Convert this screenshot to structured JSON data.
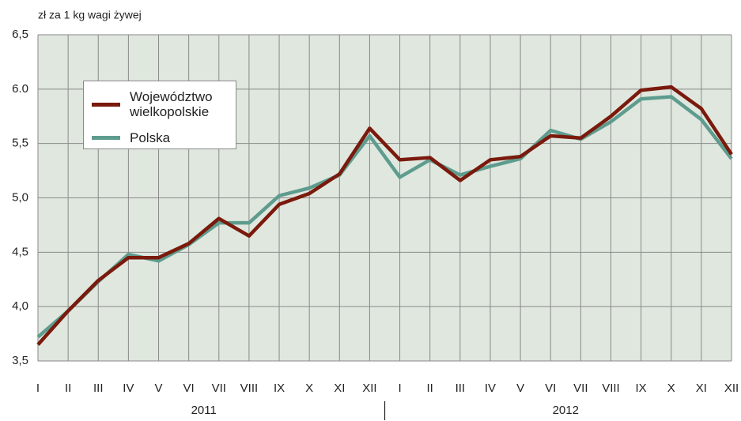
{
  "chart_data": {
    "type": "line",
    "y_axis_label": "zł za 1 kg wagi żywej",
    "categories": [
      "I",
      "II",
      "III",
      "IV",
      "V",
      "VI",
      "VII",
      "VIII",
      "IX",
      "X",
      "XI",
      "XII",
      "I",
      "II",
      "III",
      "IV",
      "V",
      "VI",
      "VII",
      "VIII",
      "IX",
      "X",
      "XI",
      "XII"
    ],
    "year_labels": [
      "2011",
      "2012"
    ],
    "series": [
      {
        "name": "Województwo wielkopolskie",
        "color": "#7a1a0c",
        "values": [
          3.65,
          3.96,
          4.24,
          4.45,
          4.45,
          4.58,
          4.81,
          4.65,
          4.94,
          5.04,
          5.22,
          5.64,
          5.35,
          5.37,
          5.16,
          5.35,
          5.38,
          5.57,
          5.55,
          5.75,
          5.99,
          6.02,
          5.82,
          5.4
        ]
      },
      {
        "name": "Polska",
        "color": "#5e9c8e",
        "values": [
          3.72,
          3.96,
          4.23,
          4.48,
          4.42,
          4.57,
          4.77,
          4.77,
          5.02,
          5.09,
          5.21,
          5.57,
          5.19,
          5.35,
          5.21,
          5.29,
          5.36,
          5.62,
          5.54,
          5.7,
          5.91,
          5.93,
          5.72,
          5.36
        ]
      }
    ],
    "ylim": [
      3.5,
      6.5
    ],
    "yticks": [
      {
        "value": 3.5,
        "label": "3,5"
      },
      {
        "value": 4.0,
        "label": "4,0"
      },
      {
        "value": 4.5,
        "label": "4,5"
      },
      {
        "value": 5.0,
        "label": "5,0"
      },
      {
        "value": 5.5,
        "label": "5,5"
      },
      {
        "value": 6.0,
        "label": "6.0"
      },
      {
        "value": 6.5,
        "label": "6,5"
      }
    ],
    "grid": true,
    "legend": "upper left"
  }
}
